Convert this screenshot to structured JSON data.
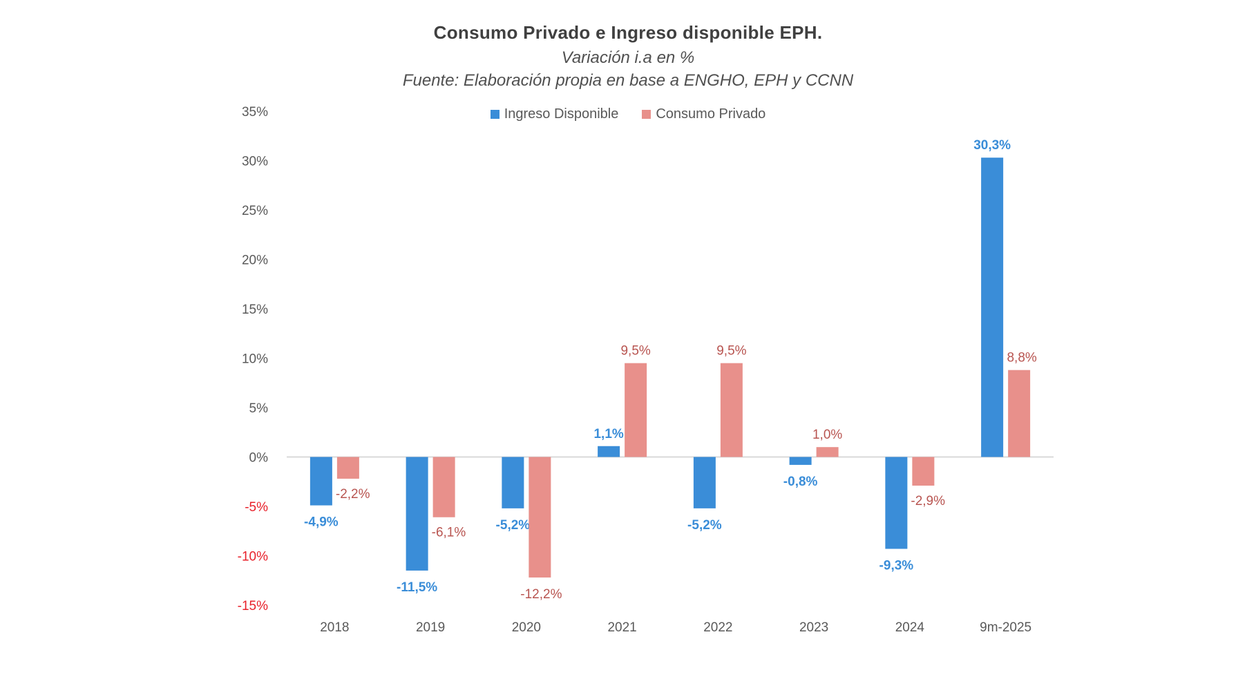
{
  "chart_data": {
    "type": "bar",
    "title": "Consumo  Privado  e  Ingreso  disponible  EPH.",
    "subtitle": "Variación i.a en %",
    "source": "Fuente: Elaboración propia en base a ENGHO, EPH y CCNN",
    "xlabel": "",
    "ylabel": "",
    "categories": [
      "2018",
      "2019",
      "2020",
      "2021",
      "2022",
      "2023",
      "2024",
      "9m-2025"
    ],
    "series": [
      {
        "name": "Ingreso Disponible",
        "color": "#3a8dd8",
        "label_color": "#3a8dd8",
        "values": [
          -4.9,
          -11.5,
          -5.2,
          1.1,
          -5.2,
          -0.8,
          -9.3,
          30.3
        ],
        "labels": [
          "-4,9%",
          "-11,5%",
          "-5,2%",
          "1,1%",
          "-5,2%",
          "-0,8%",
          "-9,3%",
          "30,3%"
        ]
      },
      {
        "name": "Consumo Privado",
        "color": "#e8908b",
        "label_color": "#b85450",
        "values": [
          -2.2,
          -6.1,
          -12.2,
          9.5,
          9.5,
          1.0,
          -2.9,
          8.8
        ],
        "labels": [
          "-2,2%",
          "-6,1%",
          "-12,2%",
          "9,5%",
          "9,5%",
          "1,0%",
          "-2,9%",
          "8,8%"
        ]
      }
    ],
    "ylim": [
      -15,
      35
    ],
    "yticks": [
      35,
      30,
      25,
      20,
      15,
      10,
      5,
      0,
      -5,
      -10,
      -15
    ],
    "ytick_labels": [
      "35%",
      "30%",
      "25%",
      "20%",
      "15%",
      "10%",
      "5%",
      "0%",
      "-5%",
      "-10%",
      "-15%"
    ],
    "negative_tick_color": "#e8202a",
    "grid": false,
    "legend_position": "top-center"
  }
}
